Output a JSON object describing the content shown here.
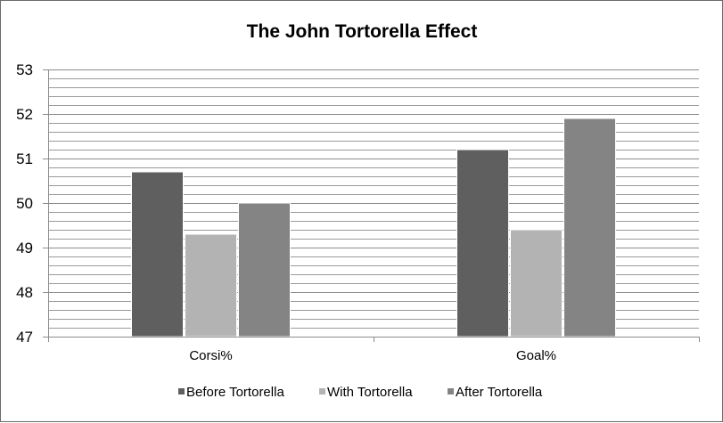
{
  "chart_data": {
    "type": "bar",
    "title": "The John Tortorella Effect",
    "xlabel": "",
    "ylabel": "",
    "categories": [
      "Corsi%",
      "Goal%"
    ],
    "series": [
      {
        "name": "Before Tortorella",
        "values": [
          50.7,
          51.2
        ],
        "color": "#5f5f5f"
      },
      {
        "name": "With Tortorella",
        "values": [
          49.3,
          49.4
        ],
        "color": "#b3b3b3"
      },
      {
        "name": "After Tortorella",
        "values": [
          50.0,
          51.9
        ],
        "color": "#848484"
      }
    ],
    "ylim": [
      47,
      53
    ],
    "y_ticks": [
      "47",
      "48",
      "49",
      "50",
      "51",
      "52",
      "53"
    ],
    "minor_grid_step": 0.2,
    "grid": true,
    "legend_position": "bottom"
  }
}
